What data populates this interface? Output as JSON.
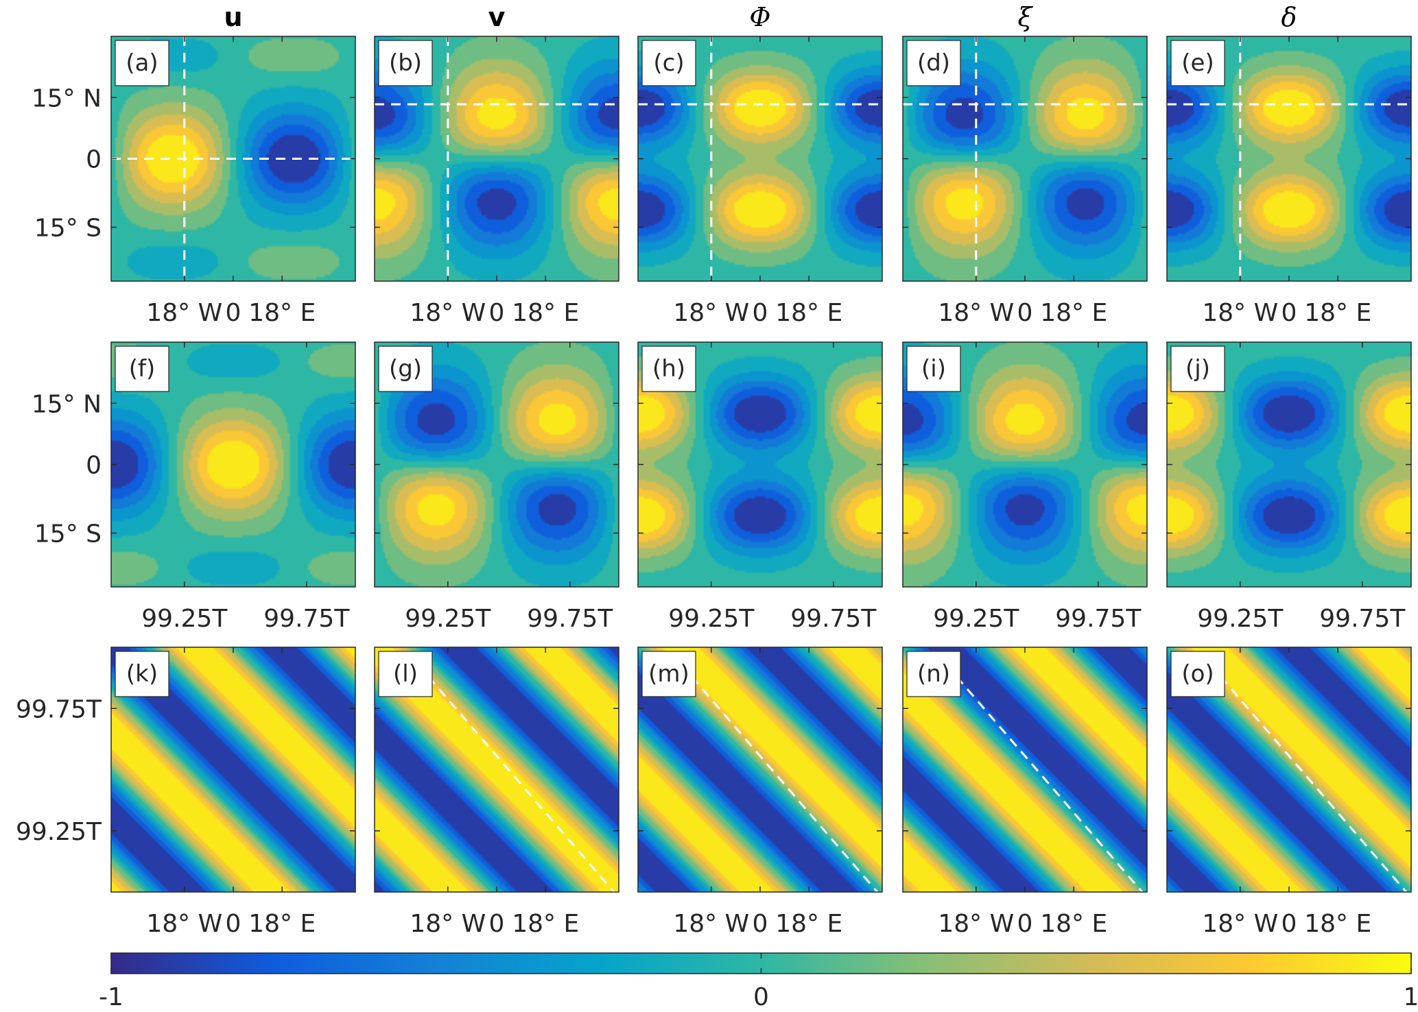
{
  "chart_data": {
    "type": "heatmap",
    "layout": {
      "rows": 3,
      "columns": 5
    },
    "column_titles": [
      "u",
      "v",
      "Φ",
      "ξ",
      "δ"
    ],
    "colorbar": {
      "colormap": "parula",
      "range": [
        -1,
        1
      ],
      "tick_labels": [
        "-1",
        "0",
        "1"
      ],
      "colors": [
        "#352a87",
        "#0f5cdd",
        "#1481d6",
        "#06a4ca",
        "#2eb7a4",
        "#87bf77",
        "#d1bb59",
        "#fec832",
        "#f9fb0e"
      ]
    },
    "rows": [
      {
        "xaxis_ticks": [
          "18° W",
          "0",
          "18° E"
        ],
        "yaxis_ticks": [
          "15° N",
          "0",
          "15° S"
        ],
        "panels": [
          {
            "label": "(a)",
            "variable": "u",
            "pattern": "symmetric",
            "phase": 0.25,
            "reference_lines": {
              "vertical_lon": -18,
              "horizontal_lat": 0
            }
          },
          {
            "label": "(b)",
            "variable": "v",
            "pattern": "antisymmetric",
            "phase": 0.0,
            "reference_lines": {
              "vertical_lon": -18,
              "horizontal_lat": 10
            }
          },
          {
            "label": "(c)",
            "variable": "Φ",
            "pattern": "twin",
            "phase": 0.0,
            "reference_lines": {
              "vertical_lon": -18,
              "horizontal_lat": 10
            }
          },
          {
            "label": "(d)",
            "variable": "ξ",
            "pattern": "antisymmetric",
            "phase": 0.25,
            "reference_lines": {
              "vertical_lon": -18,
              "horizontal_lat": 10
            }
          },
          {
            "label": "(e)",
            "variable": "δ",
            "pattern": "twin",
            "phase": 0.0,
            "reference_lines": {
              "vertical_lon": -18,
              "horizontal_lat": 10
            }
          }
        ]
      },
      {
        "xaxis_ticks": [
          "99.25T",
          "99.75T"
        ],
        "yaxis_ticks": [
          "15° N",
          "0",
          "15° S"
        ],
        "panels": [
          {
            "label": "(f)",
            "variable": "u",
            "pattern": "symmetric",
            "phase": 0.5
          },
          {
            "label": "(g)",
            "variable": "v",
            "pattern": "antisymmetric",
            "phase": 0.25
          },
          {
            "label": "(h)",
            "variable": "Φ",
            "pattern": "twin",
            "phase": 0.5
          },
          {
            "label": "(i)",
            "variable": "ξ",
            "pattern": "antisymmetric",
            "phase": 0.0
          },
          {
            "label": "(j)",
            "variable": "δ",
            "pattern": "twin",
            "phase": 0.5
          }
        ]
      },
      {
        "xaxis_ticks": [
          "18° W",
          "0",
          "18° E"
        ],
        "yaxis_ticks": [
          "99.75T",
          "99.25T"
        ],
        "panels": [
          {
            "label": "(k)",
            "variable": "u",
            "pattern": "hovmoller",
            "phase": 0.05
          },
          {
            "label": "(l)",
            "variable": "v",
            "pattern": "hovmoller",
            "phase": 0.55,
            "reference_line": "diagonal"
          },
          {
            "label": "(m)",
            "variable": "Φ",
            "pattern": "hovmoller",
            "phase": 0.3,
            "reference_line": "diagonal"
          },
          {
            "label": "(n)",
            "variable": "ξ",
            "pattern": "hovmoller",
            "phase": 0.8,
            "reference_line": "diagonal"
          },
          {
            "label": "(o)",
            "variable": "δ",
            "pattern": "hovmoller",
            "phase": 0.3,
            "reference_line": "diagonal"
          }
        ]
      }
    ]
  }
}
